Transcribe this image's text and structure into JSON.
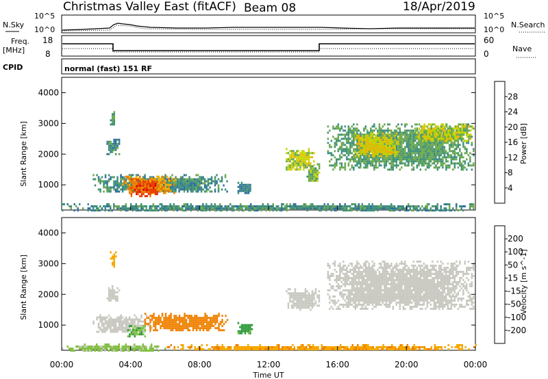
{
  "header": {
    "title": "Christmas Valley East (fitACF)",
    "beam": "Beam 08",
    "date": "18/Apr/2019"
  },
  "top_panels": {
    "nsky_label": "N.Sky",
    "nsky_ticks": [
      "10^5",
      "10^0"
    ],
    "nsearch_label": "N.Search",
    "nsearch_ticks": [
      "10^5",
      "10^0"
    ],
    "freq_label_1": "Freq.",
    "freq_label_2": "[MHz]",
    "freq_ticks": [
      "18",
      "8"
    ],
    "nave_label": "Nave",
    "nave_ticks": [
      "60",
      "0"
    ],
    "cpid_label": "CPID",
    "cpid_value": "normal (fast) 151 RF"
  },
  "colors": {
    "power_scale": [
      "#1a1aff",
      "#2b3fa6",
      "#2e6f9e",
      "#3d8f7a",
      "#6aa84f",
      "#c8d400",
      "#f2b400",
      "#f07800",
      "#e83a00",
      "#e00000"
    ],
    "velocity_scale": [
      "#e00000",
      "#f05000",
      "#f08000",
      "#f5a800",
      "#f2c800",
      "#c8c8c0",
      "#80c040",
      "#2e9a3a",
      "#2e6f9e",
      "#1f3fa0",
      "#1a1aff"
    ]
  },
  "chart_data": [
    {
      "type": "heatmap",
      "name": "power",
      "ylabel": "Slant Range [km]",
      "yticks": [
        "1000",
        "2000",
        "3000",
        "4000"
      ],
      "colorbar_label": "Power [dB]",
      "colorbar_ticks": [
        "4",
        "8",
        "12",
        "16",
        "20",
        "24",
        "28"
      ],
      "ylim": [
        180,
        4500
      ],
      "regions": [
        {
          "t0": 1.8,
          "t1": 9.6,
          "r0": 750,
          "r1": 1350,
          "value": 10
        },
        {
          "t0": 3.5,
          "t1": 6.6,
          "r0": 700,
          "r1": 1300,
          "value": 22
        },
        {
          "t0": 4.0,
          "t1": 5.6,
          "r0": 650,
          "r1": 1200,
          "value": 26
        },
        {
          "t0": 2.8,
          "t1": 3.1,
          "r0": 2900,
          "r1": 3400,
          "value": 12
        },
        {
          "t0": 2.6,
          "t1": 3.3,
          "r0": 2000,
          "r1": 2500,
          "value": 10
        },
        {
          "t0": 10.2,
          "t1": 11.0,
          "r0": 700,
          "r1": 1100,
          "value": 8
        },
        {
          "t0": 13.0,
          "t1": 14.6,
          "r0": 1500,
          "r1": 2200,
          "value": 16
        },
        {
          "t0": 14.2,
          "t1": 14.9,
          "r0": 1100,
          "r1": 1700,
          "value": 14
        },
        {
          "t0": 15.4,
          "t1": 23.9,
          "r0": 1500,
          "r1": 3000,
          "value": 12
        },
        {
          "t0": 17.0,
          "t1": 19.5,
          "r0": 1900,
          "r1": 2700,
          "value": 18
        },
        {
          "t0": 20.5,
          "t1": 23.8,
          "r0": 2400,
          "r1": 3000,
          "value": 16
        },
        {
          "t0": 0.0,
          "t1": 24.0,
          "r0": 180,
          "r1": 400,
          "value": 10
        }
      ]
    },
    {
      "type": "heatmap",
      "name": "velocity",
      "ylabel": "Slant Range [km]",
      "yticks": [
        "1000",
        "2000",
        "3000",
        "4000"
      ],
      "colorbar_label": "Velocity [m s^-1]",
      "colorbar_ticks": [
        "-200",
        "-100",
        "-50",
        "-15",
        "15",
        "50",
        "100",
        "200"
      ],
      "ylim": [
        180,
        4500
      ],
      "xlabel": "Time UT",
      "xticks": [
        "00:00",
        "04:00",
        "08:00",
        "12:00",
        "16:00",
        "20:00",
        "00:00"
      ],
      "xlim": [
        0,
        24
      ],
      "regions": [
        {
          "t0": 1.8,
          "t1": 5.2,
          "r0": 750,
          "r1": 1350,
          "value": 0
        },
        {
          "t0": 4.8,
          "t1": 9.6,
          "r0": 800,
          "r1": 1400,
          "value": -60
        },
        {
          "t0": 3.8,
          "t1": 4.8,
          "r0": 650,
          "r1": 1000,
          "value": 30
        },
        {
          "t0": 2.8,
          "t1": 3.1,
          "r0": 2900,
          "r1": 3400,
          "value": -40
        },
        {
          "t0": 2.6,
          "t1": 3.3,
          "r0": 1800,
          "r1": 2300,
          "value": 0
        },
        {
          "t0": 10.2,
          "t1": 11.0,
          "r0": 700,
          "r1": 1100,
          "value": 40
        },
        {
          "t0": 13.0,
          "t1": 14.9,
          "r0": 1500,
          "r1": 2200,
          "value": 0
        },
        {
          "t0": 15.4,
          "t1": 23.9,
          "r0": 1500,
          "r1": 3100,
          "value": 0
        },
        {
          "t0": 0.0,
          "t1": 6.0,
          "r0": 180,
          "r1": 400,
          "value": 20
        },
        {
          "t0": 6.0,
          "t1": 24.0,
          "r0": 180,
          "r1": 380,
          "value": -45
        }
      ]
    }
  ]
}
